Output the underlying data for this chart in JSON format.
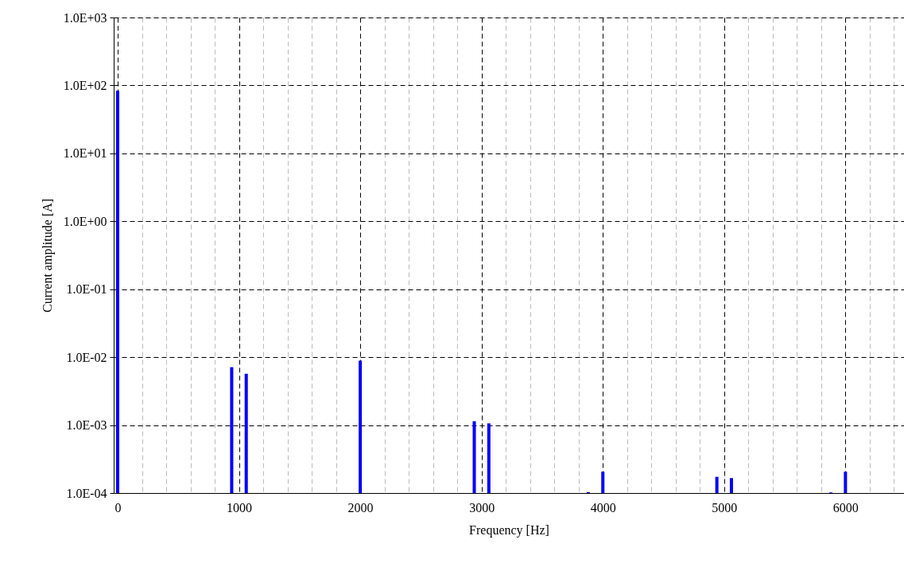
{
  "chart_data": {
    "type": "bar",
    "xlabel": "Frequency [Hz]",
    "ylabel": "Current amplitude [A]",
    "x": [
      0,
      940,
      1060,
      2000,
      2940,
      3060,
      3880,
      4000,
      4940,
      5060,
      5880,
      6000
    ],
    "series": [
      {
        "color": "#0000ff",
        "values": [
          84,
          0.0071,
          0.0057,
          0.0089,
          0.00114,
          0.00106,
          0.000103,
          0.000206,
          0.000173,
          0.000166,
          0.000102,
          0.000206
        ]
      }
    ],
    "log": "y",
    "grid": true,
    "legend": false,
    "xlim": [
      0,
      6450
    ],
    "xticks": [
      0,
      {
        "value": 200,
        "label": null
      },
      {
        "value": 400,
        "label": null
      },
      {
        "value": 600,
        "label": null
      },
      {
        "value": 800,
        "label": null
      },
      1000,
      {
        "value": 1200,
        "label": null
      },
      {
        "value": 1400,
        "label": null
      },
      {
        "value": 1600,
        "label": null
      },
      {
        "value": 1800,
        "label": null
      },
      2000,
      {
        "value": 2200,
        "label": null
      },
      {
        "value": 2400,
        "label": null
      },
      {
        "value": 2600,
        "label": null
      },
      {
        "value": 2800,
        "label": null
      },
      3000,
      {
        "value": 3200,
        "label": null
      },
      {
        "value": 3400,
        "label": null
      },
      {
        "value": 3600,
        "label": null
      },
      {
        "value": 3800,
        "label": null
      },
      4000,
      {
        "value": 4200,
        "label": null
      },
      {
        "value": 4400,
        "label": null
      },
      {
        "value": 4600,
        "label": null
      },
      {
        "value": 4800,
        "label": null
      },
      5000,
      {
        "value": 5200,
        "label": null
      },
      {
        "value": 5400,
        "label": null
      },
      {
        "value": 5600,
        "label": null
      },
      {
        "value": 5800,
        "label": null
      },
      6000,
      {
        "value": 6200,
        "label": null
      },
      {
        "value": 6400,
        "label": null
      }
    ],
    "ylim": [
      0.0001,
      1000
    ],
    "yticks": [
      {
        "value": 0.0001,
        "label": "1.0E-04"
      },
      {
        "value": 0.001,
        "label": "1.0E-03"
      },
      {
        "value": 0.01,
        "label": "1.0E-02"
      },
      {
        "value": 0.1,
        "label": "1.0E-01"
      },
      {
        "value": 1,
        "label": "1.0E+00"
      },
      {
        "value": 10,
        "label": "1.0E+01"
      },
      {
        "value": 100,
        "label": "1.0E+02"
      },
      {
        "value": 1000,
        "label": "1.0E+03"
      }
    ]
  }
}
